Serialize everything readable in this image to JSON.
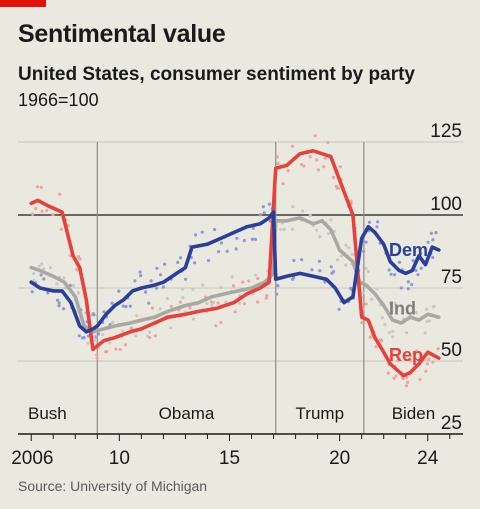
{
  "header": {
    "title": "Sentimental value",
    "subtitle": "United States, consumer sentiment by party",
    "unit": "1966=100"
  },
  "source": "Source: University of Michigan",
  "colors": {
    "dem": "#2a3e9c",
    "rep": "#e8413c",
    "ind": "#a9a9a3",
    "grid": "#c8c8bf",
    "axis": "#1a1a1a",
    "background": "#e9e9df"
  },
  "chart_data": {
    "type": "line",
    "title": "Sentimental value",
    "subtitle": "United States, consumer sentiment by party",
    "ylabel": "1966=100",
    "ylim": [
      25,
      125
    ],
    "xlim": [
      2005.4,
      2025.6
    ],
    "y_ticks": [
      {
        "value": 25,
        "label": "25"
      },
      {
        "value": 50,
        "label": "50"
      },
      {
        "value": 75,
        "label": "75"
      },
      {
        "value": 100,
        "label": "100"
      },
      {
        "value": 125,
        "label": "125"
      }
    ],
    "x_ticks": [
      {
        "value": 2006,
        "label": "2006"
      },
      {
        "value": 2010,
        "label": "10"
      },
      {
        "value": 2015,
        "label": "15"
      },
      {
        "value": 2020,
        "label": "20"
      },
      {
        "value": 2024,
        "label": "24"
      }
    ],
    "reference_line": 100,
    "eras": [
      {
        "name": "Bush",
        "start": 2005.4,
        "end": 2009.0
      },
      {
        "name": "Obama",
        "start": 2009.0,
        "end": 2017.1
      },
      {
        "name": "Trump",
        "start": 2017.1,
        "end": 2021.1
      },
      {
        "name": "Biden",
        "start": 2021.1,
        "end": 2025.6
      }
    ],
    "series": [
      {
        "name": "Dem",
        "key": "dem",
        "points": [
          [
            2006.0,
            77
          ],
          [
            2006.4,
            75
          ],
          [
            2007.0,
            74
          ],
          [
            2007.4,
            74
          ],
          [
            2007.8,
            70
          ],
          [
            2008.2,
            62
          ],
          [
            2008.5,
            60
          ],
          [
            2008.8,
            61
          ],
          [
            2009.0,
            62
          ],
          [
            2009.4,
            66
          ],
          [
            2009.8,
            69
          ],
          [
            2010.2,
            71
          ],
          [
            2010.6,
            74
          ],
          [
            2011.0,
            75
          ],
          [
            2011.6,
            76
          ],
          [
            2012.0,
            77
          ],
          [
            2012.6,
            80
          ],
          [
            2013.0,
            82
          ],
          [
            2013.3,
            89
          ],
          [
            2014.0,
            90
          ],
          [
            2014.6,
            92
          ],
          [
            2015.2,
            94
          ],
          [
            2015.8,
            96
          ],
          [
            2016.4,
            97
          ],
          [
            2016.8,
            99
          ],
          [
            2017.0,
            101
          ],
          [
            2017.1,
            78
          ],
          [
            2017.6,
            79
          ],
          [
            2018.2,
            80
          ],
          [
            2018.8,
            79
          ],
          [
            2019.4,
            78
          ],
          [
            2019.8,
            75
          ],
          [
            2020.2,
            70
          ],
          [
            2020.6,
            72
          ],
          [
            2021.0,
            92
          ],
          [
            2021.3,
            96
          ],
          [
            2021.6,
            94
          ],
          [
            2022.0,
            90
          ],
          [
            2022.3,
            84
          ],
          [
            2022.7,
            81
          ],
          [
            2023.0,
            80
          ],
          [
            2023.3,
            81
          ],
          [
            2023.6,
            86
          ],
          [
            2023.9,
            83
          ],
          [
            2024.2,
            89
          ],
          [
            2024.5,
            88
          ]
        ]
      },
      {
        "name": "Ind",
        "key": "ind",
        "points": [
          [
            2006.0,
            82
          ],
          [
            2006.4,
            81
          ],
          [
            2007.0,
            79
          ],
          [
            2007.5,
            77
          ],
          [
            2008.0,
            72
          ],
          [
            2008.4,
            62
          ],
          [
            2008.8,
            60
          ],
          [
            2009.3,
            61
          ],
          [
            2009.8,
            62
          ],
          [
            2010.5,
            63
          ],
          [
            2011.0,
            64
          ],
          [
            2011.6,
            65
          ],
          [
            2012.2,
            67
          ],
          [
            2013.0,
            69
          ],
          [
            2013.6,
            70
          ],
          [
            2014.2,
            72
          ],
          [
            2014.8,
            73
          ],
          [
            2015.4,
            74
          ],
          [
            2016.0,
            75
          ],
          [
            2016.6,
            77
          ],
          [
            2017.0,
            80
          ],
          [
            2017.1,
            98
          ],
          [
            2017.6,
            98
          ],
          [
            2018.2,
            99
          ],
          [
            2018.8,
            97
          ],
          [
            2019.2,
            98
          ],
          [
            2019.6,
            95
          ],
          [
            2020.0,
            88
          ],
          [
            2020.3,
            86
          ],
          [
            2020.6,
            84
          ],
          [
            2020.9,
            77
          ],
          [
            2021.2,
            76
          ],
          [
            2021.6,
            73
          ],
          [
            2022.0,
            69
          ],
          [
            2022.4,
            64
          ],
          [
            2022.8,
            63
          ],
          [
            2023.2,
            65
          ],
          [
            2023.6,
            64
          ],
          [
            2024.0,
            66
          ],
          [
            2024.5,
            65
          ]
        ]
      },
      {
        "name": "Rep",
        "key": "rep",
        "points": [
          [
            2006.0,
            104
          ],
          [
            2006.3,
            105
          ],
          [
            2006.8,
            103
          ],
          [
            2007.4,
            101
          ],
          [
            2007.9,
            86
          ],
          [
            2008.2,
            82
          ],
          [
            2008.5,
            71
          ],
          [
            2008.8,
            54
          ],
          [
            2009.3,
            57
          ],
          [
            2009.8,
            58
          ],
          [
            2010.5,
            60
          ],
          [
            2011.0,
            61
          ],
          [
            2011.6,
            63
          ],
          [
            2012.2,
            65
          ],
          [
            2013.0,
            66
          ],
          [
            2013.6,
            67
          ],
          [
            2014.4,
            68
          ],
          [
            2015.2,
            70
          ],
          [
            2015.8,
            73
          ],
          [
            2016.4,
            75
          ],
          [
            2016.8,
            77
          ],
          [
            2017.1,
            116
          ],
          [
            2017.6,
            117
          ],
          [
            2018.2,
            121
          ],
          [
            2018.8,
            122
          ],
          [
            2019.2,
            121
          ],
          [
            2019.6,
            120
          ],
          [
            2019.9,
            114
          ],
          [
            2020.2,
            108
          ],
          [
            2020.6,
            100
          ],
          [
            2021.0,
            65
          ],
          [
            2021.3,
            64
          ],
          [
            2021.6,
            58
          ],
          [
            2022.0,
            53
          ],
          [
            2022.3,
            49
          ],
          [
            2022.6,
            47
          ],
          [
            2022.9,
            45
          ],
          [
            2023.2,
            46
          ],
          [
            2023.6,
            49
          ],
          [
            2024.0,
            53
          ],
          [
            2024.5,
            51
          ]
        ]
      }
    ],
    "series_labels": [
      {
        "key": "dem",
        "text": "Dem",
        "value": 88
      },
      {
        "key": "ind",
        "text": "Ind",
        "value": 68
      },
      {
        "key": "rep",
        "text": "Rep",
        "value": 52
      }
    ]
  }
}
